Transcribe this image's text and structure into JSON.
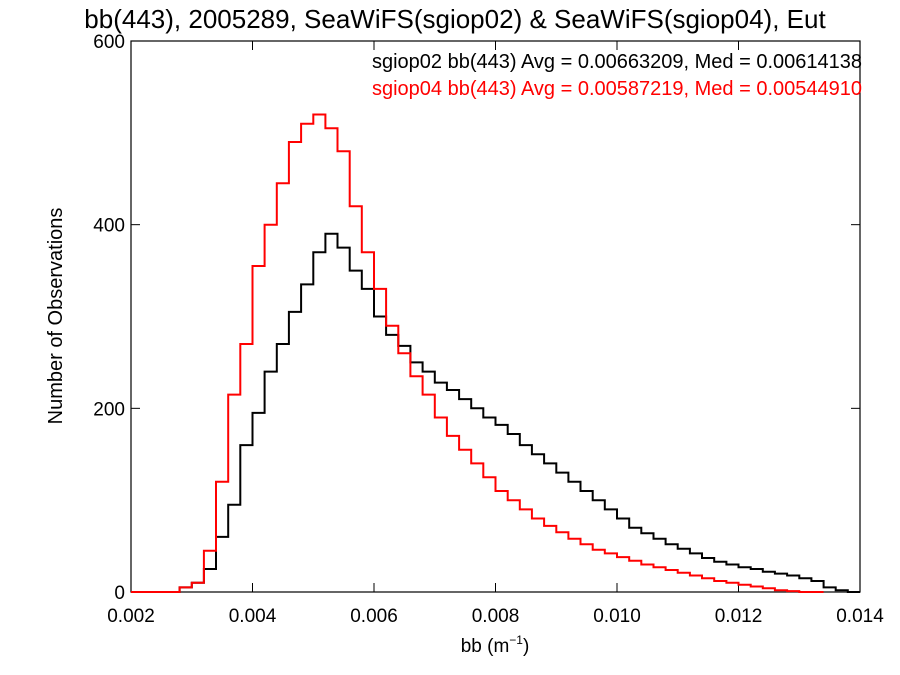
{
  "chart_data": {
    "type": "line",
    "step": true,
    "title": "bb(443), 2005289, SeaWiFS(sgiop02) & SeaWiFS(sgiop04), Eut",
    "xlabel": "bb (m",
    "xlabel_sup": "−1",
    "xlabel_close": ")",
    "ylabel": "Number of Observations",
    "xlim": [
      0.002,
      0.014
    ],
    "ylim": [
      0,
      600
    ],
    "xticks": [
      0.002,
      0.004,
      0.006,
      0.008,
      0.01,
      0.012,
      0.014
    ],
    "xtick_labels": [
      "0.002",
      "0.004",
      "0.006",
      "0.008",
      "0.010",
      "0.012",
      "0.014"
    ],
    "yticks": [
      0,
      200,
      400,
      600
    ],
    "ytick_labels": [
      "0",
      "200",
      "400",
      "600"
    ],
    "grid": false,
    "annotations": [
      {
        "text": "sgiop02 bb(443) Avg = 0.00663209, Med = 0.00614138",
        "color": "#000000"
      },
      {
        "text": "sgiop04 bb(443) Avg = 0.00587219, Med = 0.00544910",
        "color": "#ff0000"
      }
    ],
    "series": [
      {
        "color": "#000000",
        "x": [
          0.002,
          0.0025,
          0.0028,
          0.003,
          0.0032,
          0.0034,
          0.0036,
          0.0038,
          0.004,
          0.0042,
          0.0044,
          0.0046,
          0.0048,
          0.005,
          0.0052,
          0.0054,
          0.0056,
          0.0058,
          0.006,
          0.0062,
          0.0064,
          0.0066,
          0.0068,
          0.007,
          0.0072,
          0.0074,
          0.0076,
          0.0078,
          0.008,
          0.0082,
          0.0084,
          0.0086,
          0.0088,
          0.009,
          0.0092,
          0.0094,
          0.0096,
          0.0098,
          0.01,
          0.0102,
          0.0104,
          0.0106,
          0.0108,
          0.011,
          0.0112,
          0.0114,
          0.0116,
          0.0118,
          0.012,
          0.0122,
          0.0124,
          0.0126,
          0.0128,
          0.013,
          0.0132,
          0.0134,
          0.0136,
          0.0138,
          0.014
        ],
        "y": [
          0,
          0,
          5,
          10,
          25,
          60,
          95,
          160,
          195,
          240,
          270,
          305,
          335,
          370,
          390,
          375,
          350,
          330,
          300,
          280,
          268,
          250,
          240,
          228,
          220,
          210,
          200,
          190,
          182,
          172,
          160,
          150,
          140,
          130,
          120,
          110,
          100,
          90,
          80,
          70,
          64,
          58,
          52,
          47,
          42,
          37,
          33,
          30,
          27,
          25,
          22,
          20,
          18,
          15,
          12,
          5,
          2,
          0,
          0
        ]
      },
      {
        "color": "#ff0000",
        "x": [
          0.002,
          0.0025,
          0.0028,
          0.003,
          0.0032,
          0.0034,
          0.0036,
          0.0038,
          0.004,
          0.0042,
          0.0044,
          0.0046,
          0.0048,
          0.005,
          0.0052,
          0.0054,
          0.0056,
          0.0058,
          0.006,
          0.0062,
          0.0064,
          0.0066,
          0.0068,
          0.007,
          0.0072,
          0.0074,
          0.0076,
          0.0078,
          0.008,
          0.0082,
          0.0084,
          0.0086,
          0.0088,
          0.009,
          0.0092,
          0.0094,
          0.0096,
          0.0098,
          0.01,
          0.0102,
          0.0104,
          0.0106,
          0.0108,
          0.011,
          0.0112,
          0.0114,
          0.0116,
          0.0118,
          0.012,
          0.0122,
          0.0124,
          0.0126,
          0.0128,
          0.013,
          0.0132,
          0.0134
        ],
        "y": [
          0,
          0,
          5,
          10,
          45,
          120,
          215,
          270,
          355,
          400,
          445,
          490,
          510,
          520,
          505,
          480,
          420,
          370,
          330,
          290,
          260,
          235,
          215,
          190,
          170,
          155,
          140,
          125,
          110,
          100,
          90,
          80,
          72,
          65,
          58,
          52,
          46,
          42,
          38,
          34,
          30,
          27,
          24,
          21,
          18,
          15,
          12,
          10,
          8,
          6,
          4,
          2,
          1,
          0,
          0,
          0
        ]
      }
    ]
  }
}
